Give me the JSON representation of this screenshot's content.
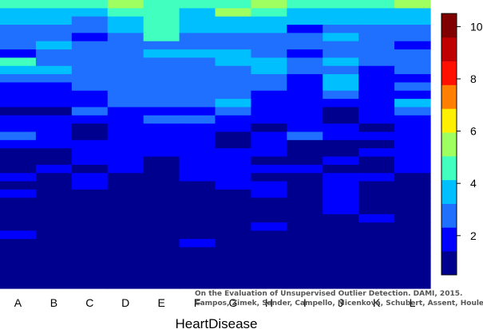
{
  "chart_data": {
    "type": "heatmap",
    "xlabel": "HeartDisease",
    "categories": [
      "A",
      "B",
      "C",
      "D",
      "E",
      "F",
      "G",
      "H",
      "I",
      "J",
      "K",
      "L"
    ],
    "row_values": [
      [
        5,
        5,
        5,
        6,
        5,
        5,
        5,
        6,
        5,
        5,
        5,
        6
      ],
      [
        4,
        4,
        4,
        5,
        5,
        4,
        6,
        5,
        4,
        4,
        4,
        4
      ],
      [
        4,
        4,
        3,
        4,
        5,
        4,
        4,
        4,
        4,
        4,
        4,
        4
      ],
      [
        3,
        3,
        3,
        4,
        5,
        4,
        4,
        4,
        2,
        3,
        3,
        3
      ],
      [
        3,
        3,
        2,
        3,
        5,
        3,
        3,
        3,
        3,
        4,
        3,
        3
      ],
      [
        3,
        4,
        3,
        3,
        3,
        3,
        3,
        3,
        3,
        3,
        3,
        2
      ],
      [
        2,
        3,
        3,
        3,
        4,
        4,
        4,
        3,
        2,
        3,
        3,
        3
      ],
      [
        5,
        3,
        3,
        3,
        3,
        3,
        4,
        4,
        3,
        4,
        3,
        3
      ],
      [
        4,
        4,
        3,
        3,
        3,
        3,
        3,
        4,
        3,
        3,
        2,
        3
      ],
      [
        3,
        3,
        3,
        3,
        3,
        3,
        3,
        3,
        2,
        4,
        2,
        2
      ],
      [
        2,
        2,
        3,
        3,
        3,
        3,
        3,
        3,
        2,
        4,
        2,
        3
      ],
      [
        2,
        2,
        2,
        3,
        3,
        3,
        3,
        2,
        2,
        3,
        2,
        2
      ],
      [
        2,
        2,
        2,
        3,
        3,
        3,
        4,
        2,
        2,
        2,
        2,
        4
      ],
      [
        1,
        1,
        3,
        2,
        2,
        2,
        3,
        2,
        2,
        1,
        2,
        3
      ],
      [
        2,
        2,
        2,
        2,
        3,
        3,
        2,
        2,
        2,
        1,
        2,
        2
      ],
      [
        2,
        2,
        1,
        2,
        2,
        2,
        2,
        1,
        2,
        2,
        1,
        2
      ],
      [
        3,
        2,
        1,
        2,
        2,
        2,
        1,
        2,
        3,
        2,
        2,
        2
      ],
      [
        2,
        2,
        2,
        2,
        2,
        2,
        1,
        2,
        1,
        1,
        1,
        2
      ],
      [
        1,
        1,
        2,
        2,
        2,
        2,
        2,
        2,
        1,
        1,
        2,
        2
      ],
      [
        1,
        1,
        2,
        2,
        1,
        2,
        2,
        1,
        1,
        2,
        1,
        2
      ],
      [
        1,
        2,
        1,
        2,
        1,
        2,
        2,
        2,
        2,
        1,
        1,
        2
      ],
      [
        2,
        1,
        2,
        1,
        1,
        2,
        2,
        1,
        1,
        2,
        2,
        1
      ],
      [
        1,
        1,
        2,
        1,
        1,
        1,
        2,
        2,
        1,
        2,
        1,
        1
      ],
      [
        2,
        1,
        1,
        1,
        1,
        1,
        1,
        2,
        1,
        2,
        1,
        1
      ],
      [
        1,
        1,
        1,
        1,
        1,
        1,
        1,
        1,
        1,
        2,
        1,
        1
      ],
      [
        1,
        1,
        1,
        1,
        1,
        1,
        1,
        1,
        1,
        2,
        1,
        1
      ],
      [
        1,
        1,
        1,
        1,
        1,
        1,
        1,
        1,
        1,
        1,
        2,
        1
      ],
      [
        1,
        1,
        1,
        1,
        1,
        1,
        1,
        2,
        1,
        1,
        1,
        1
      ],
      [
        2,
        1,
        1,
        1,
        1,
        1,
        1,
        1,
        1,
        1,
        1,
        1
      ],
      [
        1,
        1,
        1,
        1,
        1,
        2,
        1,
        1,
        1,
        1,
        1,
        1
      ],
      [
        1,
        1,
        1,
        1,
        1,
        1,
        1,
        1,
        1,
        1,
        1,
        1
      ],
      [
        1,
        1,
        1,
        1,
        1,
        1,
        1,
        1,
        1,
        1,
        1,
        1
      ],
      [
        1,
        1,
        1,
        1,
        1,
        1,
        1,
        1,
        1,
        1,
        1,
        1
      ],
      [
        1,
        1,
        1,
        1,
        1,
        1,
        1,
        1,
        1,
        1,
        1,
        1
      ],
      [
        1,
        1,
        1,
        1,
        1,
        1,
        1,
        1,
        1,
        1,
        1,
        1
      ]
    ],
    "colorbar": {
      "range": [
        0.5,
        10.5
      ],
      "ticks": [
        "2",
        "4",
        "6",
        "8",
        "10"
      ],
      "tick_values": [
        2,
        4,
        6,
        8,
        10
      ],
      "colors": [
        "#00008F",
        "#0000FF",
        "#2070FF",
        "#00BFFF",
        "#40FFBF",
        "#9FFF60",
        "#FFEF00",
        "#FF8000",
        "#FF1000",
        "#C00000",
        "#800000"
      ]
    },
    "watermark": [
      "On the Evaluation of Unsupervised Outlier Detection. DAMI, 2015.",
      "Campos, Zimek, Sander, Campello, Micenkova, Schubert, Assent, Houle"
    ]
  }
}
